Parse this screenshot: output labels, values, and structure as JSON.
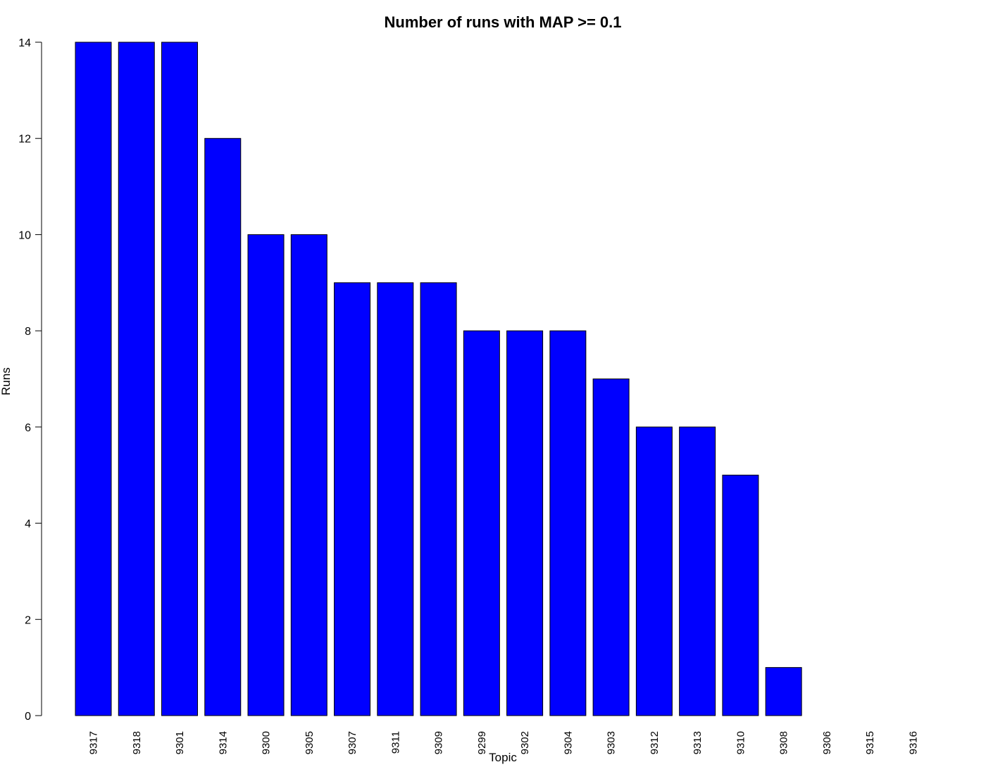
{
  "chart_data": {
    "type": "bar",
    "title": "Number of runs with MAP >= 0.1",
    "xlabel": "Topic",
    "ylabel": "Runs",
    "ylim": [
      0,
      14
    ],
    "yticks": [
      0,
      2,
      4,
      6,
      8,
      10,
      12,
      14
    ],
    "categories": [
      "9317",
      "9318",
      "9301",
      "9314",
      "9300",
      "9305",
      "9307",
      "9311",
      "9309",
      "9299",
      "9302",
      "9304",
      "9303",
      "9312",
      "9313",
      "9310",
      "9308",
      "9306",
      "9315",
      "9316"
    ],
    "values": [
      14,
      14,
      14,
      12,
      10,
      10,
      9,
      9,
      9,
      8,
      8,
      8,
      7,
      6,
      6,
      5,
      1,
      0,
      0,
      0
    ],
    "bar_color": "#0000ff",
    "grid": false,
    "legend": "none"
  }
}
